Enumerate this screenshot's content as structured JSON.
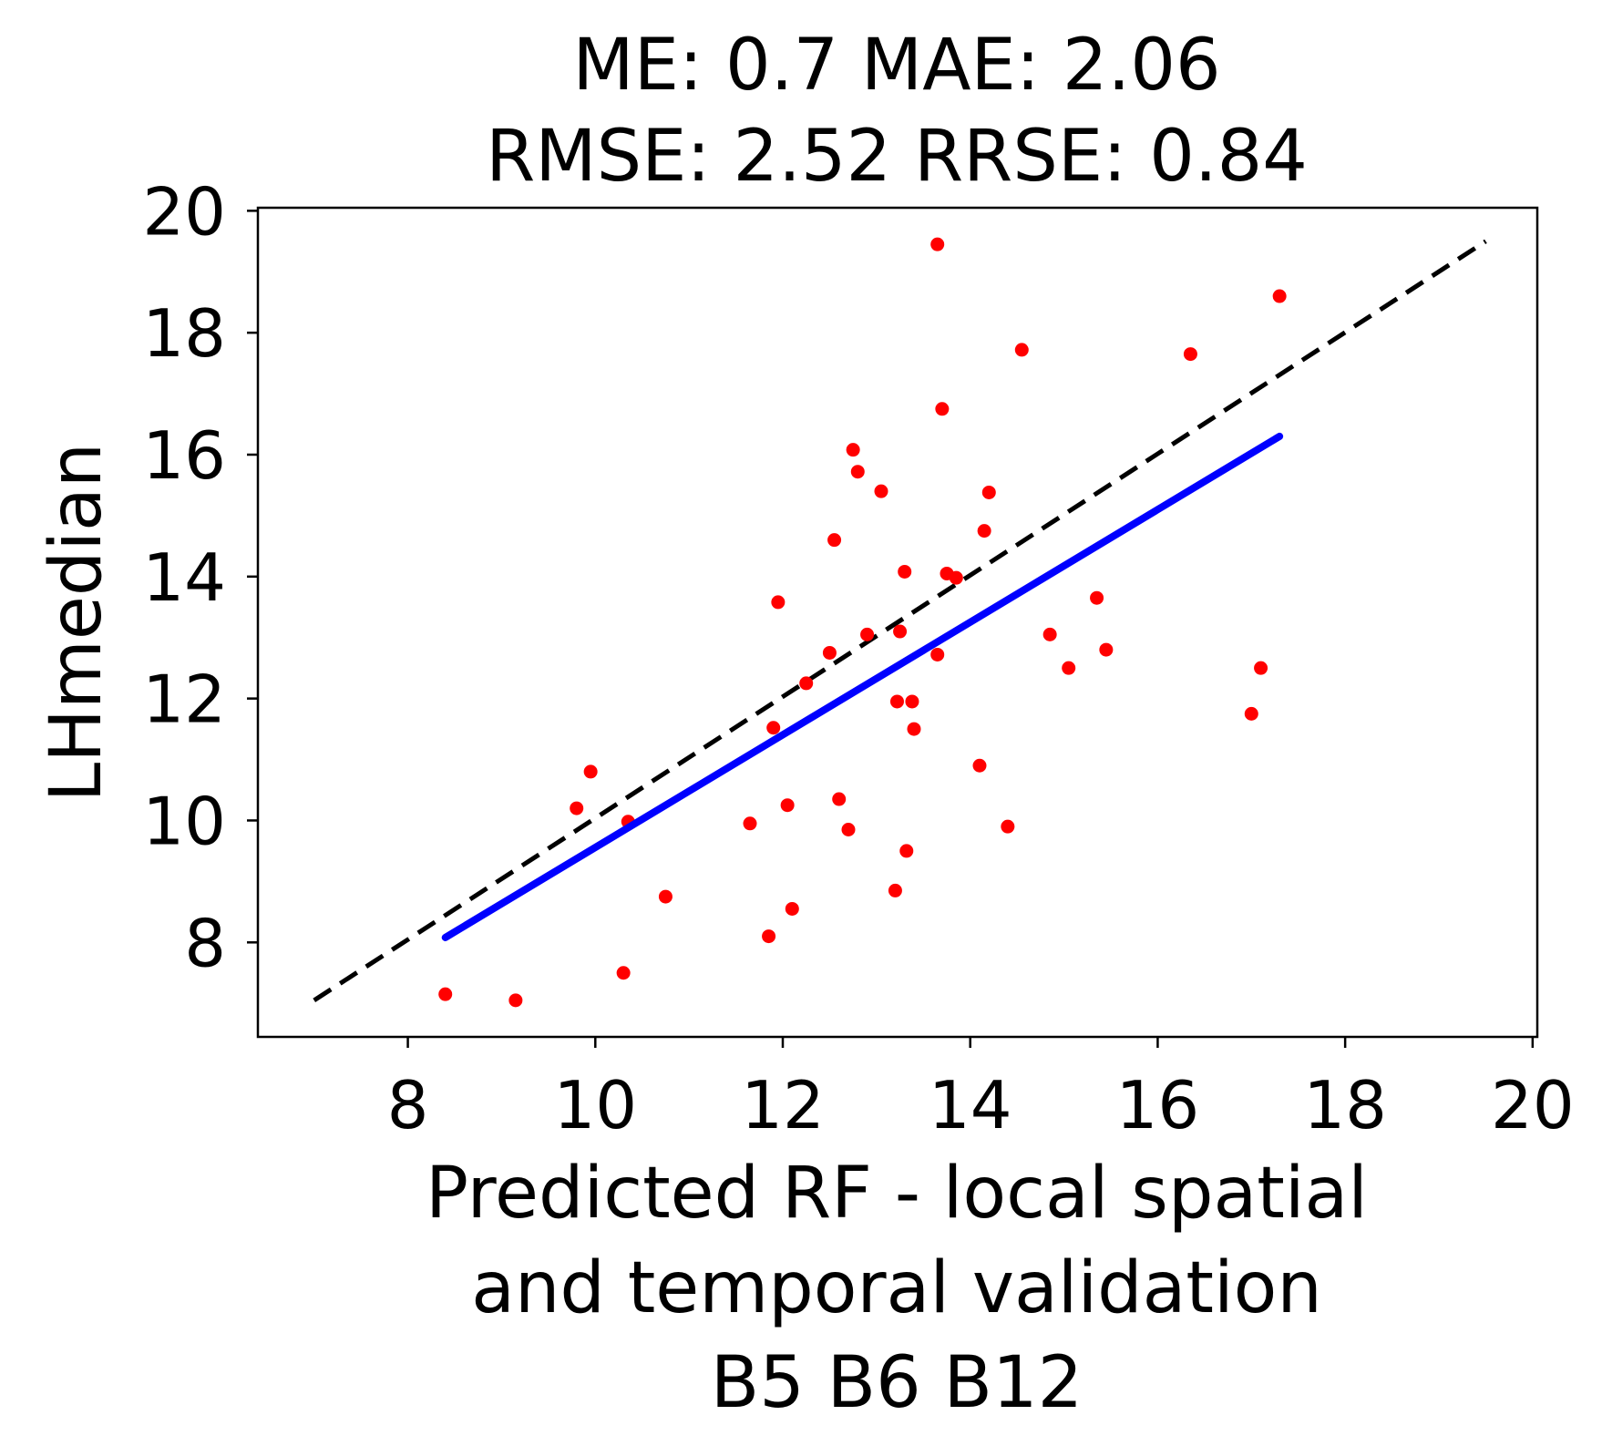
{
  "chart_data": {
    "type": "scatter",
    "title": [
      "ME: 0.7 MAE: 2.06",
      "RMSE: 2.52 RRSE: 0.84"
    ],
    "xlabel": [
      "Predicted RF - local spatial",
      "and temporal validation",
      "B5 B6 B12"
    ],
    "ylabel": "LHmedian",
    "xlim": [
      6.4,
      20.05
    ],
    "ylim": [
      6.45,
      20.05
    ],
    "xticks": [
      8,
      10,
      12,
      14,
      16,
      18,
      20
    ],
    "yticks": [
      8,
      10,
      12,
      14,
      16,
      18,
      20
    ],
    "grid": false,
    "points": [
      [
        8.4,
        7.15
      ],
      [
        9.15,
        7.05
      ],
      [
        9.8,
        10.2
      ],
      [
        9.95,
        10.8
      ],
      [
        10.3,
        7.5
      ],
      [
        10.35,
        9.98
      ],
      [
        10.75,
        8.75
      ],
      [
        11.65,
        9.95
      ],
      [
        11.85,
        8.1
      ],
      [
        11.9,
        11.52
      ],
      [
        11.95,
        13.58
      ],
      [
        12.05,
        10.25
      ],
      [
        12.1,
        8.55
      ],
      [
        12.25,
        12.25
      ],
      [
        12.5,
        12.75
      ],
      [
        12.55,
        14.6
      ],
      [
        12.6,
        10.35
      ],
      [
        12.7,
        9.85
      ],
      [
        12.75,
        16.08
      ],
      [
        12.8,
        15.72
      ],
      [
        12.9,
        13.05
      ],
      [
        13.05,
        15.4
      ],
      [
        13.2,
        8.85
      ],
      [
        13.22,
        11.95
      ],
      [
        13.25,
        13.1
      ],
      [
        13.3,
        14.08
      ],
      [
        13.32,
        9.5
      ],
      [
        13.38,
        11.95
      ],
      [
        13.4,
        11.5
      ],
      [
        13.65,
        19.45
      ],
      [
        13.65,
        12.72
      ],
      [
        13.7,
        16.75
      ],
      [
        13.75,
        14.05
      ],
      [
        13.85,
        13.98
      ],
      [
        14.1,
        10.9
      ],
      [
        14.15,
        14.75
      ],
      [
        14.2,
        15.38
      ],
      [
        14.4,
        9.9
      ],
      [
        14.55,
        17.72
      ],
      [
        14.85,
        13.05
      ],
      [
        15.05,
        12.5
      ],
      [
        15.35,
        13.65
      ],
      [
        15.45,
        12.8
      ],
      [
        16.35,
        17.65
      ],
      [
        17.0,
        11.75
      ],
      [
        17.1,
        12.5
      ],
      [
        17.3,
        18.6
      ]
    ],
    "identity_line": {
      "x": [
        7.0,
        19.5
      ],
      "y": [
        7.05,
        19.5
      ]
    },
    "fit_line": {
      "x": [
        8.4,
        17.3
      ],
      "y": [
        8.08,
        16.3
      ]
    },
    "colors": {
      "points": "#ff0000",
      "fit_line": "#0000ff",
      "identity_line": "#000000"
    }
  }
}
